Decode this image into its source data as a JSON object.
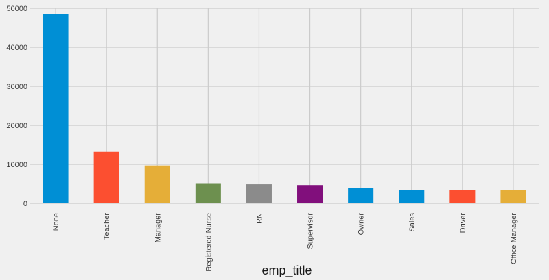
{
  "chart_data": {
    "type": "bar",
    "xlabel": "emp_title",
    "ylabel": "",
    "title": "",
    "ylim": [
      0,
      50000
    ],
    "yticks": [
      0,
      10000,
      20000,
      30000,
      40000,
      50000
    ],
    "grid": true,
    "categories": [
      "None",
      "Teacher",
      "Manager",
      "Registered Nurse",
      "RN",
      "Supervisor",
      "Owner",
      "Sales",
      "Driver",
      "Office Manager"
    ],
    "values": [
      48500,
      13200,
      9700,
      5000,
      4900,
      4700,
      4000,
      3500,
      3500,
      3400
    ],
    "colors": [
      "#008fd5",
      "#fc4f30",
      "#e5ae38",
      "#6d904f",
      "#8b8b8b",
      "#810f7c",
      "#008fd5",
      "#008fd5",
      "#fc4f30",
      "#e5ae38"
    ]
  }
}
